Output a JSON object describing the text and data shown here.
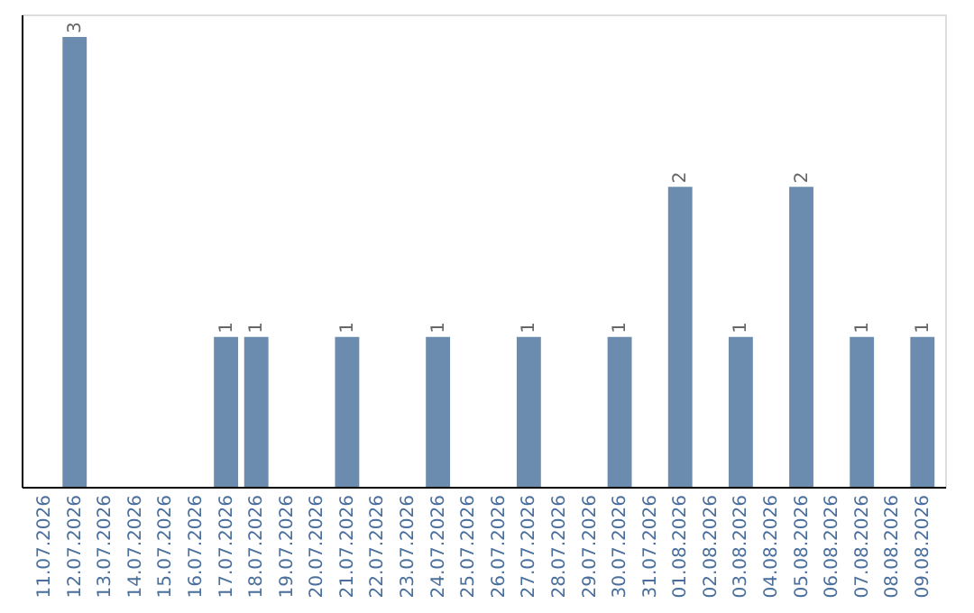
{
  "chart_data": {
    "type": "bar",
    "categories": [
      "11.07.2026",
      "12.07.2026",
      "13.07.2026",
      "14.07.2026",
      "15.07.2026",
      "16.07.2026",
      "17.07.2026",
      "18.07.2026",
      "19.07.2026",
      "20.07.2026",
      "21.07.2026",
      "22.07.2026",
      "23.07.2026",
      "24.07.2026",
      "25.07.2026",
      "26.07.2026",
      "27.07.2026",
      "28.07.2026",
      "29.07.2026",
      "30.07.2026",
      "31.07.2026",
      "01.08.2026",
      "02.08.2026",
      "03.08.2026",
      "04.08.2026",
      "05.08.2026",
      "06.08.2026",
      "07.08.2026",
      "08.08.2026",
      "09.08.2026"
    ],
    "values": [
      0,
      3,
      0,
      0,
      0,
      0,
      1,
      1,
      0,
      0,
      1,
      0,
      0,
      1,
      0,
      0,
      1,
      0,
      0,
      1,
      0,
      2,
      0,
      1,
      0,
      2,
      0,
      1,
      0,
      1
    ],
    "value_labels": [
      null,
      "3",
      null,
      null,
      null,
      null,
      "1",
      "1",
      null,
      null,
      "1",
      null,
      null,
      "1",
      null,
      null,
      "1",
      null,
      null,
      "1",
      null,
      "2",
      null,
      "1",
      null,
      "2",
      null,
      "1",
      null,
      "1"
    ],
    "color": "#6b8cae",
    "ylim": [
      0,
      3.15
    ],
    "tick_labels": "x"
  }
}
